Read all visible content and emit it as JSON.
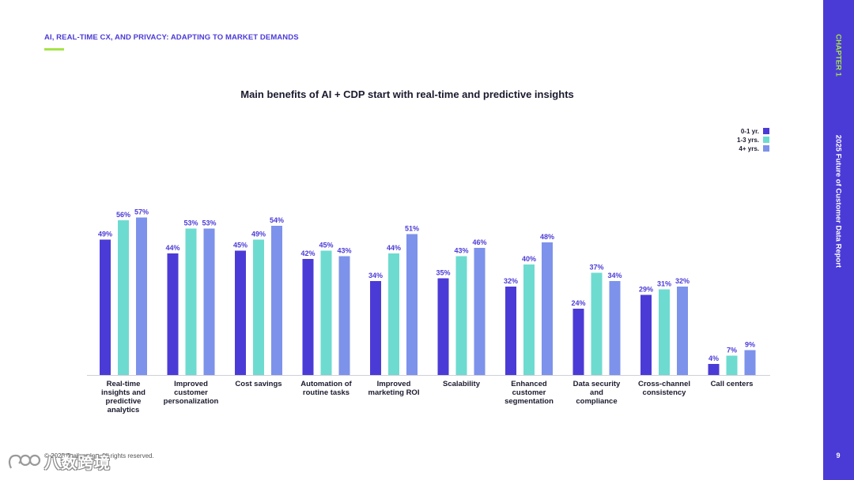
{
  "header": {
    "section_title": "AI, REAL-TIME CX, AND PRIVACY: ADAPTING TO MARKET DEMANDS"
  },
  "sidebar": {
    "chapter": "CHAPTER 1",
    "report": "2025 Future of Customer Data Report",
    "page_number": "9"
  },
  "footer": {
    "copyright": "© 2025 Tealium Inc. All rights reserved."
  },
  "watermark": {
    "text": "八数跨境"
  },
  "colors": {
    "series_0_1": "#4b3bd6",
    "series_1_3": "#6edbd0",
    "series_4_plus": "#7d92ea",
    "accent": "#4b3bd6",
    "rule": "#a6e34a"
  },
  "chart_data": {
    "type": "bar",
    "title": "Main benefits of AI + CDP start with real-time and predictive insights",
    "categories": [
      [
        "Real-time",
        "insights and",
        "predictive",
        "analytics"
      ],
      [
        "Improved",
        "customer",
        "personalization"
      ],
      [
        "Cost savings"
      ],
      [
        "Automation of",
        "routine tasks"
      ],
      [
        "Improved",
        "marketing ROI"
      ],
      [
        "Scalability"
      ],
      [
        "Enhanced",
        "customer",
        "segmentation"
      ],
      [
        "Data security",
        "and",
        "compliance"
      ],
      [
        "Cross-channel",
        "consistency"
      ],
      [
        "Call centers"
      ]
    ],
    "series": [
      {
        "name": "0-1 yr.",
        "color": "#4b3bd6",
        "values": [
          49,
          44,
          45,
          42,
          34,
          35,
          32,
          24,
          29,
          4
        ]
      },
      {
        "name": "1-3 yrs.",
        "color": "#6edbd0",
        "values": [
          56,
          53,
          49,
          45,
          44,
          43,
          40,
          37,
          31,
          7
        ]
      },
      {
        "name": "4+ yrs.",
        "color": "#7d92ea",
        "values": [
          57,
          53,
          54,
          43,
          51,
          46,
          48,
          34,
          32,
          9
        ]
      }
    ],
    "value_suffix": "%",
    "xlabel": "",
    "ylabel": "",
    "ylim": [
      0,
      60
    ],
    "legend": "top-right",
    "grid": false
  }
}
